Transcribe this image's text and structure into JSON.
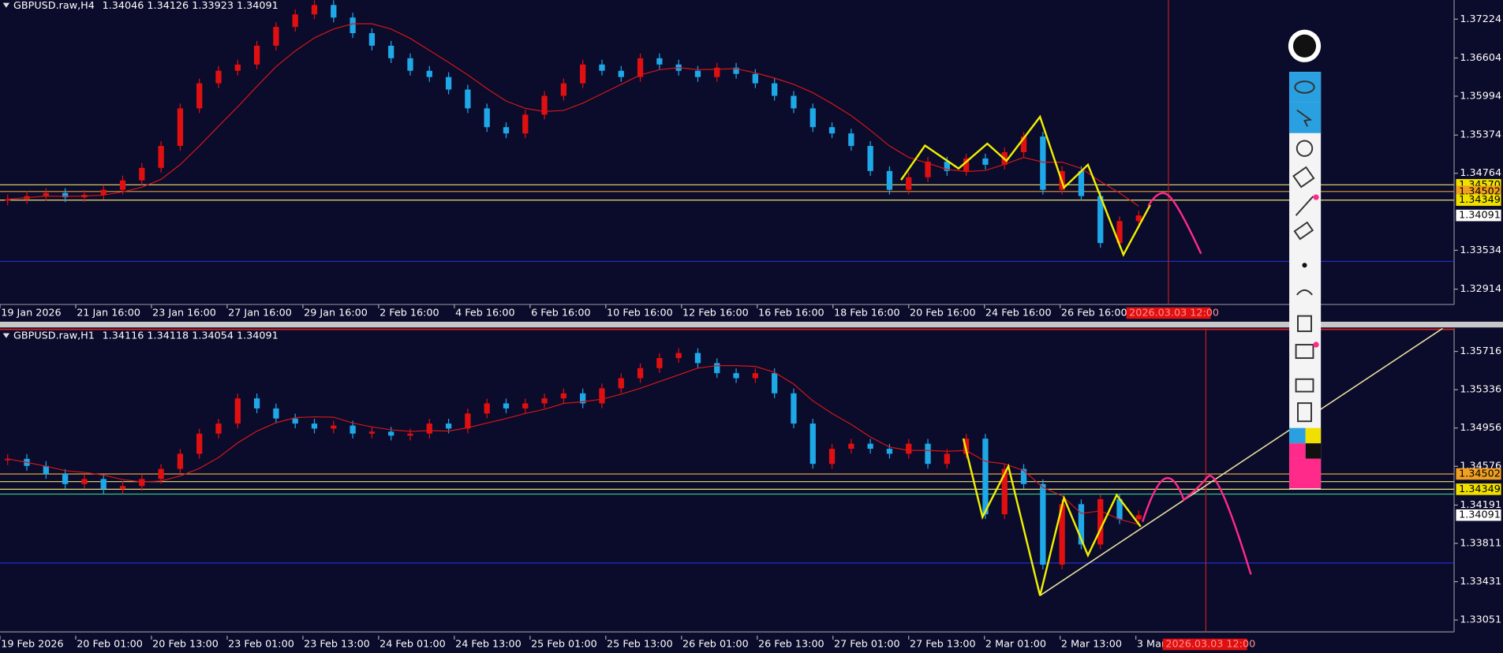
{
  "panels": [
    {
      "symbol": "GBPUSD.raw,H4",
      "ohlc": "1.34046 1.34126 1.33923 1.34091",
      "price_labels": [
        "1.37224",
        "1.36604",
        "1.35994",
        "1.35374",
        "1.34764",
        "1.33534",
        "1.32914"
      ],
      "price_tags": [
        "1.34570",
        "1.34502",
        "1.34349",
        "1.34091"
      ],
      "time_labels": [
        "19 Jan 2026",
        "21 Jan 16:00",
        "23 Jan 16:00",
        "27 Jan 16:00",
        "29 Jan 16:00",
        "2 Feb 16:00",
        "4 Feb 16:00",
        "6 Feb 16:00",
        "10 Feb 16:00",
        "12 Feb 16:00",
        "16 Feb 16:00",
        "18 Feb 16:00",
        "20 Feb 16:00",
        "24 Feb 16:00",
        "26 Feb 16:00"
      ],
      "cursor_time": "2026.03.03 12:00",
      "closes": [
        1.3435,
        1.344,
        1.3445,
        1.3438,
        1.3442,
        1.345,
        1.3465,
        1.3485,
        1.352,
        1.358,
        1.362,
        1.364,
        1.365,
        1.368,
        1.371,
        1.373,
        1.3745,
        1.3725,
        1.37,
        1.368,
        1.366,
        1.364,
        1.363,
        1.361,
        1.358,
        1.355,
        1.354,
        1.357,
        1.36,
        1.362,
        1.365,
        1.364,
        1.363,
        1.366,
        1.365,
        1.364,
        1.363,
        1.3645,
        1.3635,
        1.362,
        1.36,
        1.358,
        1.355,
        1.354,
        1.352,
        1.348,
        1.345,
        1.347,
        1.3495,
        1.348,
        1.35,
        1.349,
        1.351,
        1.3535,
        1.345,
        1.348,
        1.344,
        1.3365,
        1.34,
        1.3409
      ]
    },
    {
      "symbol": "GBPUSD.raw,H1",
      "ohlc": "1.34116 1.34118 1.34054 1.34091",
      "price_labels": [
        "1.35716",
        "1.35336",
        "1.34956",
        "1.34576",
        "1.34191",
        "1.33811",
        "1.33431",
        "1.33051"
      ],
      "price_tags": [
        "1.34502",
        "1.34349",
        "1.34091"
      ],
      "time_labels": [
        "19 Feb 2026",
        "20 Feb 01:00",
        "20 Feb 13:00",
        "23 Feb 01:00",
        "23 Feb 13:00",
        "24 Feb 01:00",
        "24 Feb 13:00",
        "25 Feb 01:00",
        "25 Feb 13:00",
        "26 Feb 01:00",
        "26 Feb 13:00",
        "27 Feb 01:00",
        "27 Feb 13:00",
        "2 Mar 01:00",
        "2 Mar 13:00",
        "3 Mar"
      ],
      "cursor_time": "2026.03.03 12:00",
      "closes": [
        1.3465,
        1.3458,
        1.345,
        1.344,
        1.3445,
        1.3435,
        1.3438,
        1.3445,
        1.3455,
        1.347,
        1.349,
        1.35,
        1.3525,
        1.3515,
        1.3505,
        1.35,
        1.3495,
        1.3498,
        1.349,
        1.3492,
        1.3488,
        1.349,
        1.35,
        1.3495,
        1.351,
        1.352,
        1.3515,
        1.352,
        1.3525,
        1.353,
        1.352,
        1.3535,
        1.3545,
        1.3555,
        1.3565,
        1.357,
        1.356,
        1.355,
        1.3545,
        1.355,
        1.353,
        1.35,
        1.346,
        1.3475,
        1.348,
        1.3475,
        1.347,
        1.348,
        1.346,
        1.347,
        1.3485,
        1.341,
        1.3455,
        1.344,
        1.336,
        1.342,
        1.338,
        1.3425,
        1.3405,
        1.3409
      ]
    }
  ]
}
